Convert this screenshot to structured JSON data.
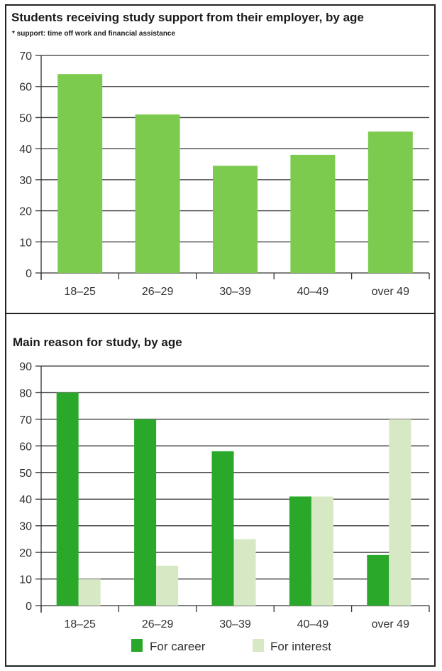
{
  "colors": {
    "support": "#7dcb4e",
    "career": "#2aa82a",
    "interest": "#d6e9c4",
    "grid": "#333333"
  },
  "chart_data": [
    {
      "type": "bar",
      "title": "Students receiving study support from their employer, by age",
      "subtitle": "* support: time off work and financial assistance",
      "xlabel": "",
      "ylabel": "",
      "categories": [
        "18–25",
        "26–29",
        "30–39",
        "40–49",
        "over 49"
      ],
      "values": [
        64,
        51,
        34.5,
        38,
        45.5
      ],
      "ylim": [
        0,
        70
      ],
      "yticks": [
        "0",
        "10",
        "20",
        "30",
        "40",
        "50",
        "60",
        "70"
      ],
      "grid": true
    },
    {
      "type": "bar",
      "title": "Main reason for study, by age",
      "xlabel": "",
      "ylabel": "",
      "categories": [
        "18–25",
        "26–29",
        "30–39",
        "40–49",
        "over 49"
      ],
      "series": [
        {
          "name": "For career",
          "values": [
            80,
            70,
            58,
            41,
            19
          ]
        },
        {
          "name": "For interest",
          "values": [
            10,
            15,
            25,
            41,
            70
          ]
        }
      ],
      "ylim": [
        0,
        90
      ],
      "yticks": [
        "0",
        "10",
        "20",
        "30",
        "40",
        "50",
        "60",
        "70",
        "80",
        "90"
      ],
      "grid": true,
      "legend": "bottom"
    }
  ]
}
